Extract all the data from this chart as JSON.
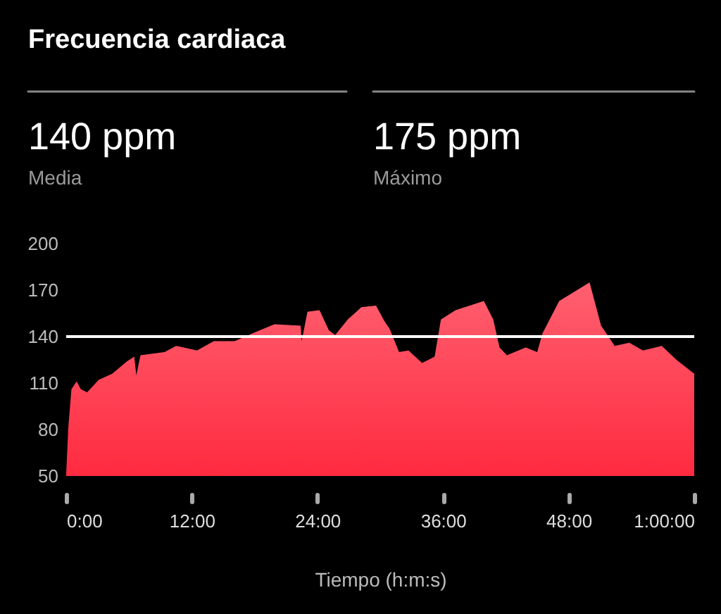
{
  "chart_data": {
    "type": "area",
    "title": "Frecuencia cardiaca",
    "xlabel": "Tiempo (h:m:s)",
    "annotations": [
      "140 ppm",
      "Media",
      "175 ppm",
      "Máximo"
    ],
    "series": [
      {
        "color": "#ff2a40",
        "x": [
          0,
          0.2,
          0.5,
          1.0,
          1.4,
          2.0,
          3.1,
          4.4,
          5.8,
          6.5,
          6.7,
          7.1,
          9.4,
          10.5,
          12.5,
          14.1,
          16.1,
          18.1,
          19.9,
          22.4,
          22.5,
          23.05,
          24.2,
          25.1,
          25.7,
          26.9,
          28.2,
          29.6,
          30.4,
          30.9,
          31.8,
          32.7,
          34.0,
          35.2,
          35.8,
          37.2,
          39.9,
          40.8,
          41.4,
          42.1,
          43.9,
          45.0,
          45.5,
          47.1,
          49.3,
          50.0,
          51.1,
          52.4,
          53.8,
          55.1,
          56.9,
          58.3,
          60
        ],
        "values": [
          51,
          81,
          106,
          111,
          106,
          104,
          112,
          116,
          124,
          127,
          115,
          128,
          130,
          134,
          131,
          137,
          137,
          143,
          148,
          147,
          137,
          156,
          157,
          144,
          141,
          151,
          159,
          160,
          150,
          145,
          130,
          131,
          123,
          127,
          151,
          157,
          163,
          151,
          133,
          128,
          133,
          130,
          142,
          163,
          172,
          175,
          147,
          134,
          136,
          131,
          134,
          125,
          116
        ]
      }
    ],
    "xlim": [
      0,
      60
    ],
    "xticks": [
      {
        "value": 0,
        "label": "0:00"
      },
      {
        "value": 12,
        "label": "12:00"
      },
      {
        "value": 24,
        "label": "24:00"
      },
      {
        "value": 36,
        "label": "36:00"
      },
      {
        "value": 48,
        "label": "48:00"
      },
      {
        "value": 60,
        "label": "1:00:00"
      }
    ],
    "ylim": [
      50,
      200
    ],
    "yticks": [
      50,
      80,
      110,
      140,
      170,
      200
    ],
    "ref_lines": [
      {
        "axis": "y",
        "value": 140,
        "color": "#ffffff"
      }
    ],
    "grid": false,
    "legend": false
  }
}
